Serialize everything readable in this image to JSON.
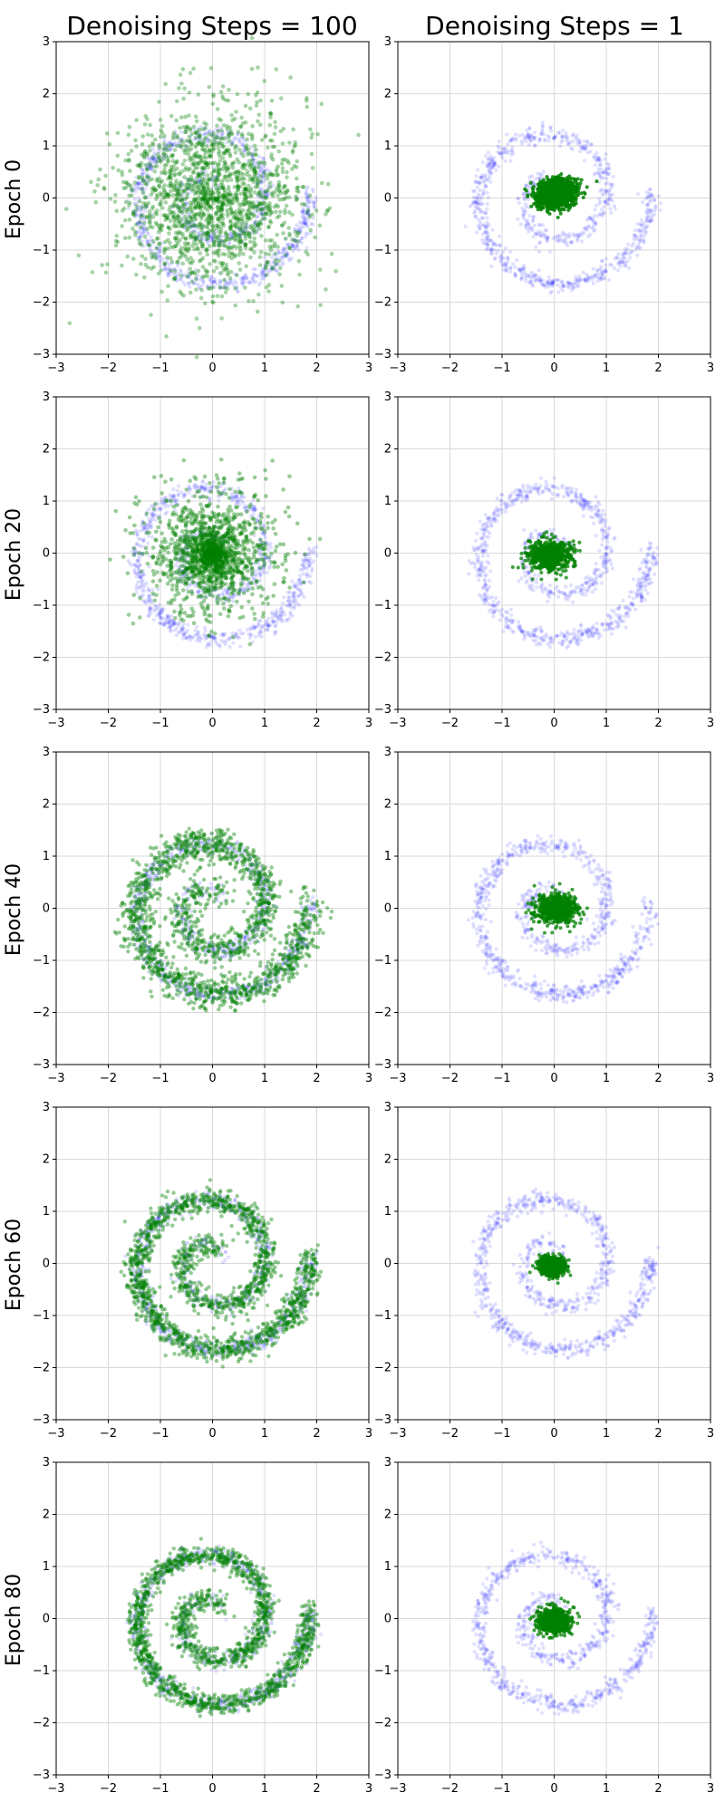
{
  "column_titles": [
    "Denoising Steps = 100",
    "Denoising Steps = 1"
  ],
  "row_labels": [
    "Epoch 0",
    "Epoch 20",
    "Epoch 40",
    "Epoch 60",
    "Epoch 80"
  ],
  "colors": {
    "reference": "#0000ff",
    "generated": "#008000",
    "grid": "#d9d9d9"
  },
  "chart_data": {
    "type": "scatter",
    "layout": "grid 5 rows x 2 columns",
    "xlim": [
      -3,
      3
    ],
    "ylim": [
      -3,
      3
    ],
    "xticks": [
      -3,
      -2,
      -1,
      0,
      1,
      2,
      3
    ],
    "yticks": [
      -3,
      -2,
      -1,
      0,
      1,
      2,
      3
    ],
    "grid": true,
    "reference_distribution": {
      "shape": "spiral",
      "color": "#0000ff",
      "arm_points_theta_r": [
        [
          0.2,
          0.15
        ],
        [
          0.6,
          0.22
        ],
        [
          1.0,
          0.28
        ],
        [
          1.4,
          0.33
        ],
        [
          1.8,
          0.39
        ],
        [
          2.2,
          0.44
        ],
        [
          2.6,
          0.5
        ],
        [
          3.0,
          0.55
        ],
        [
          3.4,
          0.6
        ],
        [
          3.8,
          0.66
        ],
        [
          4.2,
          0.71
        ],
        [
          4.6,
          0.77
        ],
        [
          5.0,
          0.82
        ],
        [
          5.4,
          0.88
        ],
        [
          5.8,
          0.93
        ],
        [
          6.2,
          0.99
        ],
        [
          6.6,
          1.04
        ],
        [
          7.0,
          1.1
        ],
        [
          7.4,
          1.15
        ],
        [
          7.8,
          1.2
        ],
        [
          8.2,
          1.26
        ],
        [
          8.6,
          1.31
        ],
        [
          9.0,
          1.37
        ],
        [
          9.4,
          1.42
        ],
        [
          9.8,
          1.48
        ],
        [
          10.2,
          1.53
        ],
        [
          10.6,
          1.59
        ],
        [
          11.0,
          1.64
        ],
        [
          11.4,
          1.7
        ],
        [
          11.8,
          1.75
        ],
        [
          12.2,
          1.8
        ],
        [
          12.6,
          1.86
        ]
      ]
    },
    "panels": [
      {
        "row": 0,
        "col": 0,
        "generated": "gaussian cloud",
        "center": [
          0.0,
          0.0
        ],
        "spread": 0.85
      },
      {
        "row": 0,
        "col": 1,
        "generated": "dense blob",
        "center": [
          0.0,
          0.1
        ],
        "spread": 0.35
      },
      {
        "row": 1,
        "col": 0,
        "generated": "noisy ring",
        "center": [
          0.0,
          0.0
        ],
        "spread": 0.7
      },
      {
        "row": 1,
        "col": 1,
        "generated": "center blob",
        "center": [
          -0.1,
          -0.05
        ],
        "spread": 0.2
      },
      {
        "row": 2,
        "col": 0,
        "generated": "spiral",
        "noise": 0.16
      },
      {
        "row": 2,
        "col": 1,
        "generated": "center blob",
        "center": [
          0.05,
          0.0
        ],
        "spread": 0.2
      },
      {
        "row": 3,
        "col": 0,
        "generated": "spiral",
        "noise": 0.12
      },
      {
        "row": 3,
        "col": 1,
        "generated": "center blob",
        "center": [
          -0.05,
          -0.05
        ],
        "spread": 0.12
      },
      {
        "row": 4,
        "col": 0,
        "generated": "spiral",
        "noise": 0.1
      },
      {
        "row": 4,
        "col": 1,
        "generated": "center blob",
        "center": [
          0.0,
          -0.05
        ],
        "spread": 0.16
      }
    ]
  }
}
